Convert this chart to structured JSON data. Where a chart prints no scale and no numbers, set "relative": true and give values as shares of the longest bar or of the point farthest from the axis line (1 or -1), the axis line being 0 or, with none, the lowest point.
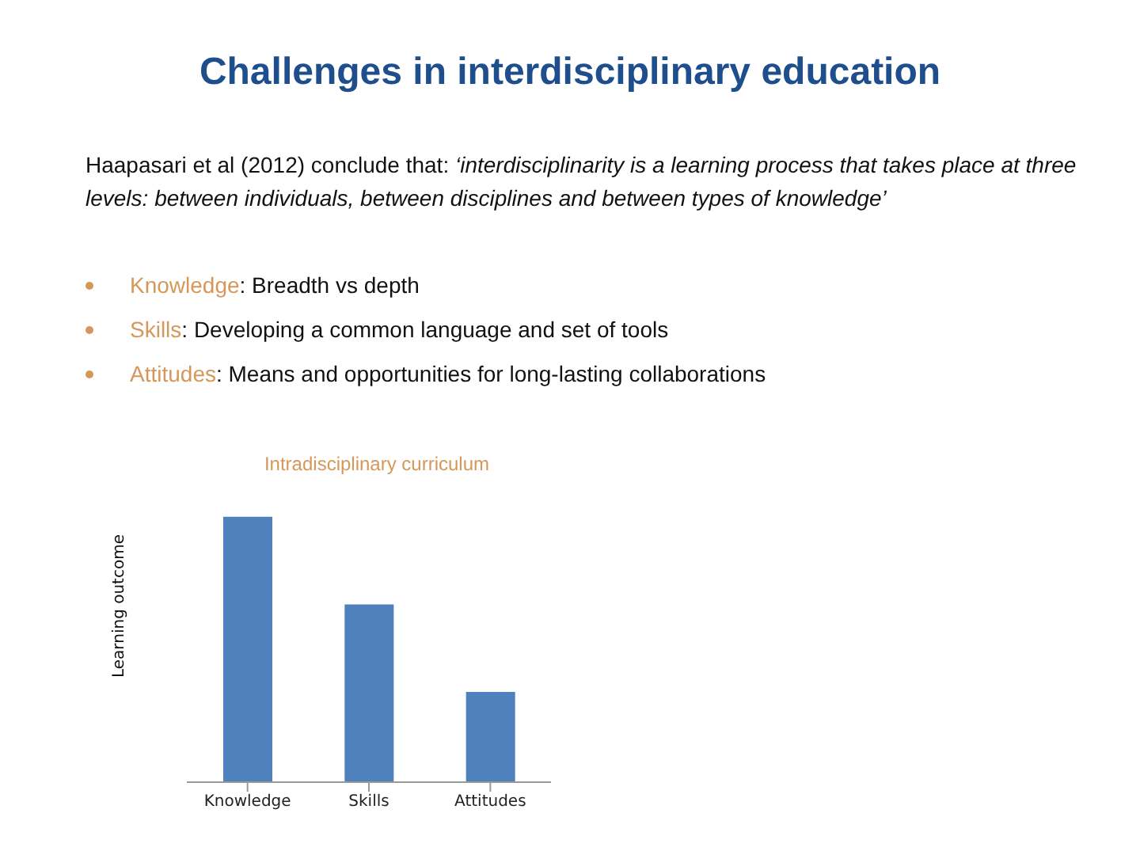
{
  "chart_data": {
    "type": "bar",
    "title": "Challenges in interdisciplinary education",
    "subtitle": "Intradisciplinary curriculum",
    "ylabel": "Learning outcome",
    "relative": true,
    "categories": [
      "Knowledge",
      "Skills",
      "Attitudes"
    ],
    "values": [
      1,
      0.67,
      0.34
    ],
    "color": "#4f81bd",
    "annotations": [
      "Haapasari et al (2012) conclude that: ‘interdisciplinarity is a learning process that takes place at three levels: between individuals, between disciplines and between types of knowledge’",
      "Knowledge: Breadth vs depth",
      "Skills: Developing a common language and set of tools",
      "Attitudes: Means and opportunities for long-lasting collaborations"
    ]
  }
}
